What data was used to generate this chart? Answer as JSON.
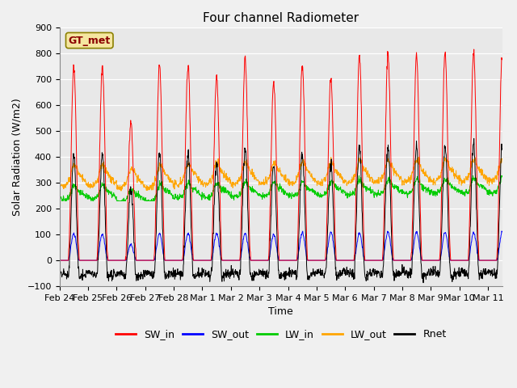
{
  "title": "Four channel Radiometer",
  "xlabel": "Time",
  "ylabel": "Solar Radiation (W/m2)",
  "ylim": [
    -100,
    900
  ],
  "xlim": [
    0,
    15.5
  ],
  "bg_color": "#e0e0e0",
  "plot_bg_color": "#e8e8e8",
  "station_label": "GT_met",
  "x_tick_labels": [
    "Feb 24",
    "Feb 25",
    "Feb 26",
    "Feb 27",
    "Feb 28",
    "Mar 1",
    "Mar 2",
    "Mar 3",
    "Mar 4",
    "Mar 5",
    "Mar 6",
    "Mar 7",
    "Mar 8",
    "Mar 9",
    "Mar 10",
    "Mar 11"
  ],
  "x_tick_positions": [
    0,
    1,
    2,
    3,
    4,
    5,
    6,
    7,
    8,
    9,
    10,
    11,
    12,
    13,
    14,
    15
  ],
  "colors": {
    "SW_in": "#ff0000",
    "SW_out": "#0000ff",
    "LW_in": "#00cc00",
    "LW_out": "#ffa500",
    "Rnet": "#000000"
  },
  "legend": [
    "SW_in",
    "SW_out",
    "LW_in",
    "LW_out",
    "Rnet"
  ],
  "sw_in_peaks": [
    750,
    750,
    535,
    760,
    755,
    715,
    775,
    690,
    750,
    700,
    785,
    795,
    790,
    800,
    800,
    795
  ],
  "sw_out_peaks": [
    105,
    100,
    60,
    105,
    105,
    105,
    105,
    100,
    105,
    110,
    105,
    110,
    110,
    110,
    110,
    110
  ],
  "lw_in_base": 250,
  "lw_out_base": 310,
  "rnet_night": -55
}
